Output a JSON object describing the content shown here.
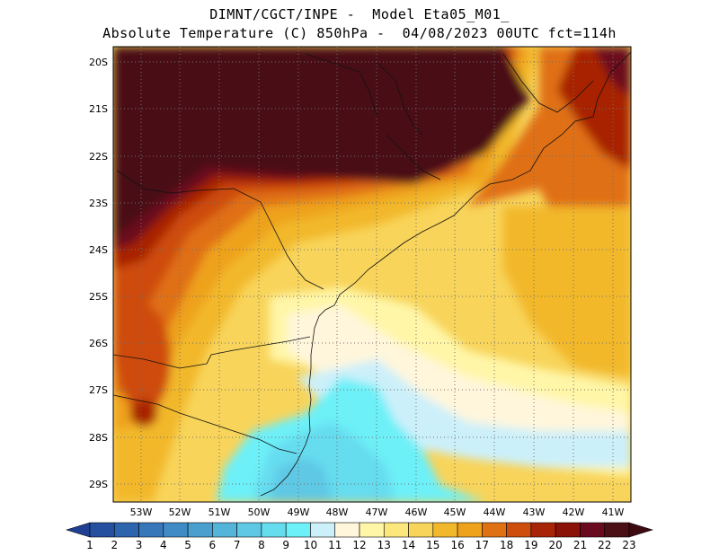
{
  "title": {
    "line1": "DIMNT/CGCT/INPE -  Model Eta05_M01_",
    "line2": "Absolute Temperature (C) 850hPa -  04/08/2023 00UTC fct=114h"
  },
  "map": {
    "lat_labels": [
      "20S",
      "21S",
      "22S",
      "23S",
      "24S",
      "25S",
      "26S",
      "27S",
      "28S",
      "29S"
    ],
    "lon_labels": [
      "53W",
      "52W",
      "51W",
      "50W",
      "49W",
      "48W",
      "47W",
      "46W",
      "45W",
      "44W",
      "43W",
      "42W",
      "41W"
    ]
  },
  "colorbar": {
    "labels": [
      "1",
      "2",
      "3",
      "4",
      "5",
      "6",
      "7",
      "8",
      "9",
      "10",
      "11",
      "12",
      "13",
      "14",
      "15",
      "16",
      "17",
      "18",
      "19",
      "20",
      "21",
      "22",
      "23"
    ],
    "colors": [
      "#1f3f93",
      "#25509f",
      "#2c64ad",
      "#3677b9",
      "#3f8bc5",
      "#4a9fcf",
      "#55b4da",
      "#5fc8e4",
      "#66dcef",
      "#6df0f8",
      "#ccf0fa",
      "#fff6dc",
      "#fff6a8",
      "#fce77c",
      "#f8d45a",
      "#f2b82c",
      "#eea21c",
      "#e07014",
      "#ce4c0c",
      "#a82406",
      "#8a1206",
      "#6a0a1e",
      "#4a1016",
      "#3e0a12"
    ]
  }
}
